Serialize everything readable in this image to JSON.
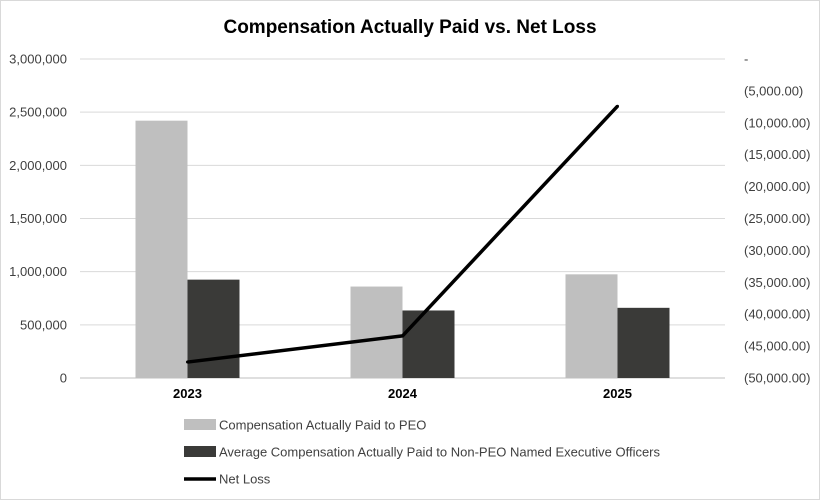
{
  "chart_data": {
    "type": "bar",
    "title": "Compensation Actually Paid vs. Net Loss",
    "categories": [
      "2023",
      "2024",
      "2025"
    ],
    "y_left": {
      "ylim": [
        0,
        3000000
      ],
      "ticks": [
        0,
        500000,
        1000000,
        1500000,
        2000000,
        2500000,
        3000000
      ],
      "tick_labels": [
        "0",
        "500,000",
        "1,000,000",
        "1,500,000",
        "2,000,000",
        "2,500,000",
        "3,000,000"
      ]
    },
    "y_right": {
      "ylim": [
        -50000,
        0
      ],
      "ticks": [
        0,
        -5000,
        -10000,
        -15000,
        -20000,
        -25000,
        -30000,
        -35000,
        -40000,
        -45000,
        -50000
      ],
      "tick_labels": [
        "-",
        "(5,000.00)",
        "(10,000.00)",
        "(15,000.00)",
        "(20,000.00)",
        "(25,000.00)",
        "(30,000.00)",
        "(35,000.00)",
        "(40,000.00)",
        "(45,000.00)",
        "(50,000.00)"
      ]
    },
    "series": [
      {
        "name": "Compensation Actually Paid to PEO",
        "kind": "bar",
        "axis": "left",
        "color": "#bfbfbf",
        "values": [
          2420000,
          860000,
          975000
        ]
      },
      {
        "name": "Average Compensation Actually Paid to Non-PEO Named Executive Officers",
        "kind": "bar",
        "axis": "left",
        "color": "#3a3a38",
        "values": [
          925000,
          635000,
          660000
        ]
      },
      {
        "name": "Net Loss",
        "kind": "line",
        "axis": "right",
        "color": "#000000",
        "values": [
          -47500,
          -43400,
          -7400
        ]
      }
    ],
    "grid": true,
    "legend_position": "bottom"
  }
}
